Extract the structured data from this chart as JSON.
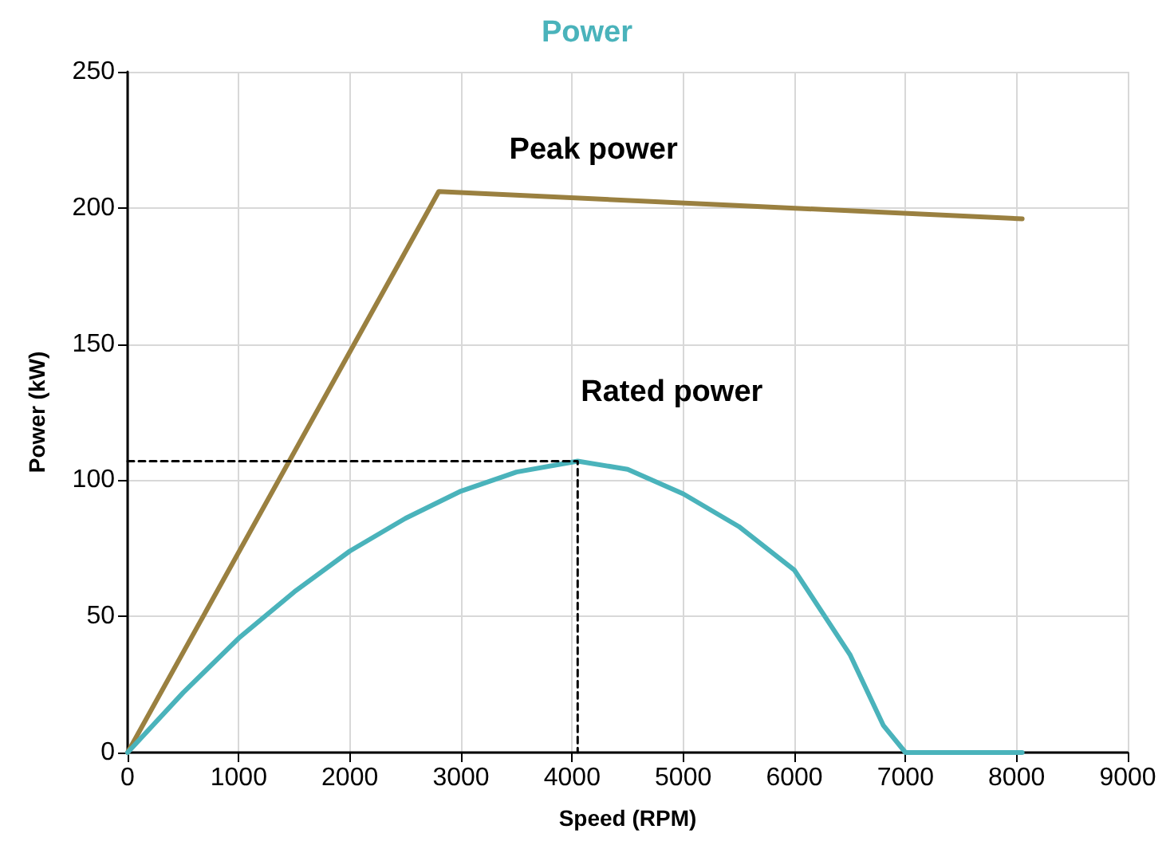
{
  "chart_data": {
    "type": "line",
    "title": "Power",
    "xlabel": "Speed (RPM)",
    "ylabel": "Power (kW)",
    "xlim": [
      0,
      9000
    ],
    "xticks": [
      0,
      1000,
      2000,
      3000,
      4000,
      5000,
      6000,
      7000,
      8000,
      9000
    ],
    "ylim": [
      0,
      250
    ],
    "yticks": [
      0,
      50,
      100,
      150,
      200,
      250
    ],
    "grid": true,
    "marker": "none",
    "line_style": "solid",
    "series": [
      {
        "name": "Peak power",
        "color": "#9a8040",
        "x": [
          0,
          2800,
          8050
        ],
        "values": [
          0,
          206,
          196
        ]
      },
      {
        "name": "Rated power",
        "color": "#4ab3bb",
        "x": [
          0,
          500,
          1000,
          1500,
          2000,
          2500,
          3000,
          3500,
          4050,
          4500,
          5000,
          5500,
          6000,
          6500,
          6800,
          7000,
          8050
        ],
        "values": [
          0,
          22,
          42,
          59,
          74,
          86,
          96,
          103,
          107,
          104,
          95,
          83,
          67,
          36,
          10,
          0,
          0
        ]
      },
      {
        "color": "#000000",
        "line_style": "dashed",
        "x": [
          0,
          4050,
          4050
        ],
        "values": [
          107,
          107,
          0
        ]
      }
    ]
  }
}
